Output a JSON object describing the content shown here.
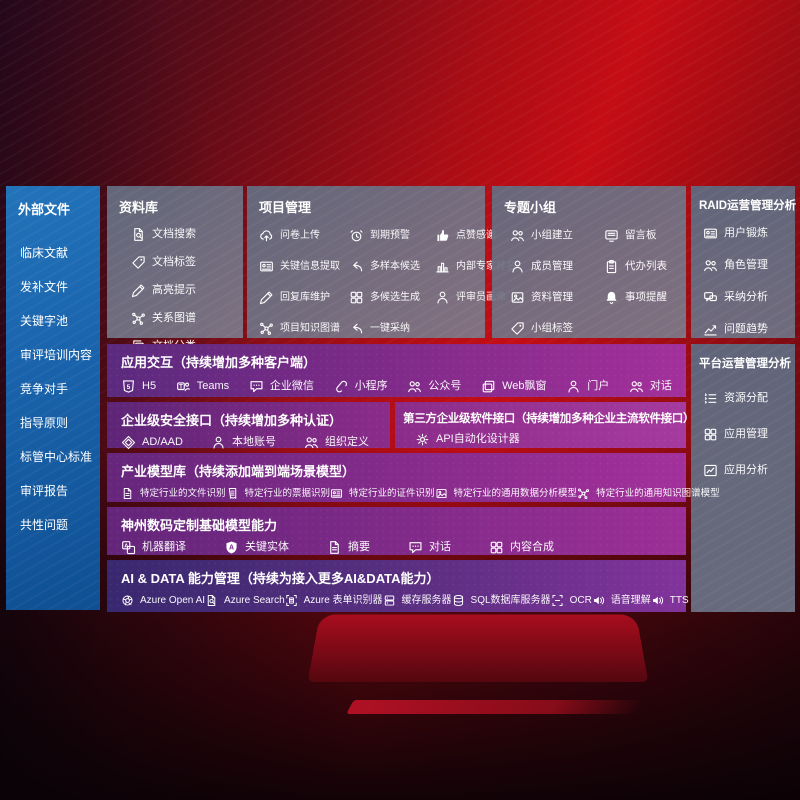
{
  "theme": {
    "background_red": "#c50d15",
    "background_dark": "#2f0a1f",
    "sidebar_blue": "#1a64ad",
    "panel_gray": "#6e7383",
    "row_purple_left": "#5e2577",
    "row_purple_right": "#a3309b",
    "row_indigo": "#38286f"
  },
  "sidebar": {
    "title": "外部文件",
    "items": [
      {
        "label": "临床文献"
      },
      {
        "label": "发补文件"
      },
      {
        "label": "关键字池"
      },
      {
        "label": "审评培训内容"
      },
      {
        "label": "竞争对手"
      },
      {
        "label": "指导原则"
      },
      {
        "label": "标管中心标准"
      },
      {
        "label": "审评报告"
      },
      {
        "label": "共性问题"
      }
    ]
  },
  "library": {
    "title": "资料库",
    "items": [
      {
        "icon": "doc-search-icon",
        "label": "文档搜索"
      },
      {
        "icon": "tag-icon",
        "label": "文档标签"
      },
      {
        "icon": "highlighter-icon",
        "label": "高亮提示"
      },
      {
        "icon": "graph-icon",
        "label": "关系图谱"
      },
      {
        "icon": "copy-icon",
        "label": "文档分类"
      }
    ]
  },
  "project": {
    "title": "项目管理",
    "items": [
      {
        "icon": "cloud-upload-icon",
        "label": "问卷上传"
      },
      {
        "icon": "alarm-icon",
        "label": "到期预警"
      },
      {
        "icon": "thumbs-up-icon",
        "label": "点赞感谢"
      },
      {
        "icon": "extract-doc-icon",
        "label": "关键信息提取"
      },
      {
        "icon": "reply-arrow-icon",
        "label": "多样本候选"
      },
      {
        "icon": "ranking-chart-icon",
        "label": "内部专家排名"
      },
      {
        "icon": "pencil-icon",
        "label": "回复库维护"
      },
      {
        "icon": "grid-icon",
        "label": "多候选生成"
      },
      {
        "icon": "person-icon",
        "label": "评审员画像"
      },
      {
        "icon": "graph-icon",
        "label": "项目知识图谱"
      },
      {
        "icon": "reply-arrow-icon",
        "label": "一键采纳"
      }
    ]
  },
  "group": {
    "title": "专题小组",
    "items": [
      {
        "icon": "people-icon",
        "label": "小组建立"
      },
      {
        "icon": "bbs-icon",
        "label": "留言板"
      },
      {
        "icon": "member-icon",
        "label": "成员管理"
      },
      {
        "icon": "clipboard-icon",
        "label": "代办列表"
      },
      {
        "icon": "photo-icon",
        "label": "资料管理"
      },
      {
        "icon": "bell-icon",
        "label": "事项提醒"
      },
      {
        "icon": "tag-icon",
        "label": "小组标签"
      }
    ]
  },
  "raid": {
    "title": "RAID运营管理分析",
    "items": [
      {
        "icon": "id-card-icon",
        "label": "用户锻炼"
      },
      {
        "icon": "people-icon",
        "label": "角色管理"
      },
      {
        "icon": "qa-chat-icon",
        "label": "采纳分析"
      },
      {
        "icon": "trend-chart-icon",
        "label": "问题趋势"
      }
    ]
  },
  "platform": {
    "title": "平台运营管理分析",
    "items": [
      {
        "icon": "list-icon",
        "label": "资源分配"
      },
      {
        "icon": "apps-grid-icon",
        "label": "应用管理"
      },
      {
        "icon": "app-chart-icon",
        "label": "应用分析"
      }
    ]
  },
  "interaction": {
    "title": "应用交互（持续增加多种客户端）",
    "items": [
      {
        "icon": "h5-icon",
        "label": "H5"
      },
      {
        "icon": "teams-icon",
        "label": "Teams"
      },
      {
        "icon": "wechat-work-icon",
        "label": "企业微信"
      },
      {
        "icon": "miniprogram-icon",
        "label": "小程序"
      },
      {
        "icon": "official-account-icon",
        "label": "公众号"
      },
      {
        "icon": "web-window-icon",
        "label": "Web飘窗"
      },
      {
        "icon": "portal-icon",
        "label": "门户"
      },
      {
        "icon": "dialog-icon",
        "label": "对话"
      }
    ]
  },
  "security": {
    "title": "企业级安全接口（持续增加多种认证）",
    "items": [
      {
        "icon": "azure-ad-icon",
        "label": "AD/AAD"
      },
      {
        "icon": "local-account-icon",
        "label": "本地账号"
      },
      {
        "icon": "org-icon",
        "label": "组织定义"
      }
    ]
  },
  "thirdparty": {
    "title": "第三方企业级软件接口（持续增加多种企业主流软件接口）",
    "items": [
      {
        "icon": "api-gear-icon",
        "label": "API自动化设计器"
      }
    ]
  },
  "industry": {
    "title": "产业模型库（持续添加端到端场景模型）",
    "items": [
      {
        "icon": "doc-icon",
        "label": "特定行业的文件识别"
      },
      {
        "icon": "receipt-icon",
        "label": "特定行业的票据识别"
      },
      {
        "icon": "id-card-icon",
        "label": "特定行业的证件识别"
      },
      {
        "icon": "data-model-icon",
        "label": "特定行业的通用数据分析模型"
      },
      {
        "icon": "graph-icon",
        "label": "特定行业的通用知识图谱模型"
      }
    ]
  },
  "basemodel": {
    "title": "神州数码定制基础模型能力",
    "items": [
      {
        "icon": "translate-icon",
        "label": "机器翻译"
      },
      {
        "icon": "entity-shield-icon",
        "label": "关键实体"
      },
      {
        "icon": "summary-doc-icon",
        "label": "摘要"
      },
      {
        "icon": "chat-icon",
        "label": "对话"
      },
      {
        "icon": "compose-grid-icon",
        "label": "内容合成"
      }
    ]
  },
  "aidata": {
    "title": "AI & DATA 能力管理（持续为接入更多AI&DATA能力）",
    "items": [
      {
        "icon": "openai-icon",
        "label": "Azure Open AI"
      },
      {
        "icon": "azure-search-icon",
        "label": "Azure Search"
      },
      {
        "icon": "form-recognizer-icon",
        "label": "Azure 表单识别器"
      },
      {
        "icon": "cache-server-icon",
        "label": "缓存服务器"
      },
      {
        "icon": "sql-db-icon",
        "label": "SQL数据库服务器"
      },
      {
        "icon": "ocr-icon",
        "label": "OCR"
      },
      {
        "icon": "speech-icon",
        "label": "语音理解"
      },
      {
        "icon": "tts-icon",
        "label": "TTS"
      }
    ]
  }
}
